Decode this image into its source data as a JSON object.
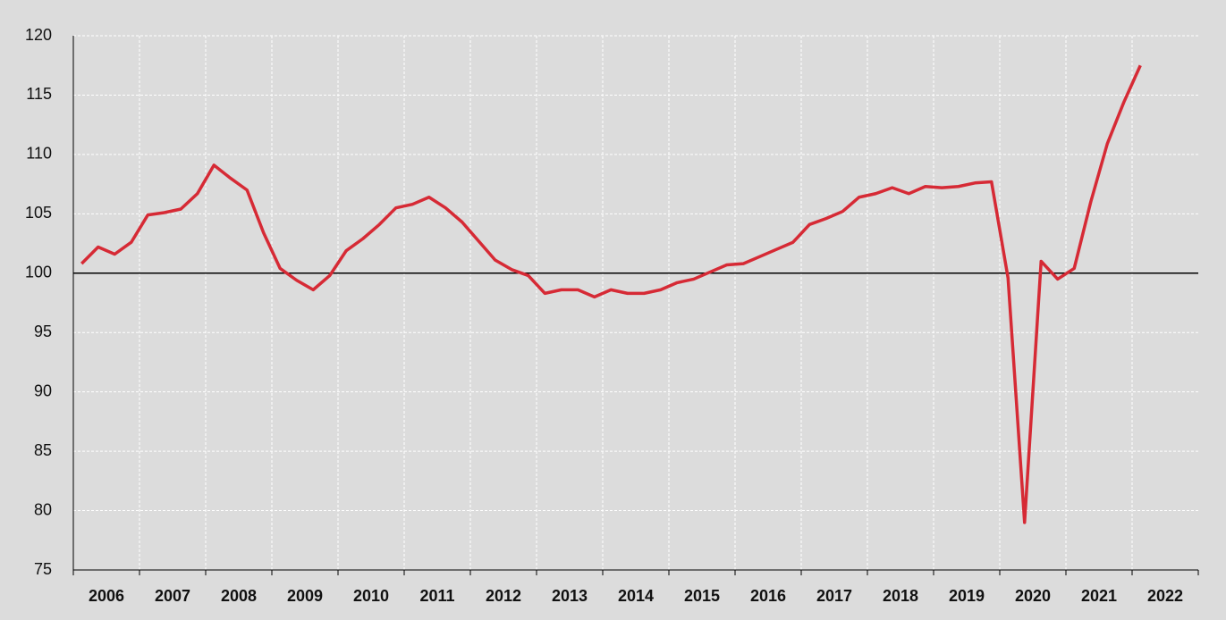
{
  "chart_data": {
    "type": "line",
    "categories": [
      "2006",
      "2007",
      "2008",
      "2009",
      "2010",
      "2011",
      "2012",
      "2013",
      "2014",
      "2015",
      "2016",
      "2017",
      "2018",
      "2019",
      "2020",
      "2021",
      "2022"
    ],
    "x": [
      2006.125,
      2006.375,
      2006.625,
      2006.875,
      2007.125,
      2007.375,
      2007.625,
      2007.875,
      2008.125,
      2008.375,
      2008.625,
      2008.875,
      2009.125,
      2009.375,
      2009.625,
      2009.875,
      2010.125,
      2010.375,
      2010.625,
      2010.875,
      2011.125,
      2011.375,
      2011.625,
      2011.875,
      2012.125,
      2012.375,
      2012.625,
      2012.875,
      2013.125,
      2013.375,
      2013.625,
      2013.875,
      2014.125,
      2014.375,
      2014.625,
      2014.875,
      2015.125,
      2015.375,
      2015.625,
      2015.875,
      2016.125,
      2016.375,
      2016.625,
      2016.875,
      2017.125,
      2017.375,
      2017.625,
      2017.875,
      2018.125,
      2018.375,
      2018.625,
      2018.875,
      2019.125,
      2019.375,
      2019.625,
      2019.875,
      2020.125,
      2020.375,
      2020.625,
      2020.875,
      2021.125,
      2021.375,
      2021.625,
      2021.875,
      2022.125
    ],
    "series": [
      {
        "color": "#d62a35",
        "values": [
          100.8,
          102.2,
          101.6,
          102.6,
          104.9,
          105.1,
          105.4,
          106.7,
          109.1,
          108.0,
          107.0,
          103.4,
          100.4,
          99.4,
          98.6,
          99.8,
          101.9,
          102.9,
          104.1,
          105.5,
          105.8,
          106.4,
          105.5,
          104.3,
          102.7,
          101.1,
          100.3,
          99.8,
          98.3,
          98.6,
          98.6,
          98.0,
          98.6,
          98.3,
          98.3,
          98.6,
          99.2,
          99.5,
          100.1,
          100.7,
          100.8,
          101.4,
          102.0,
          102.6,
          104.1,
          104.6,
          105.2,
          106.4,
          106.7,
          107.2,
          106.7,
          107.3,
          107.2,
          107.3,
          107.6,
          107.7,
          99.6,
          79.0,
          101.0,
          99.5,
          100.4,
          106.0,
          110.9,
          114.4,
          117.5
        ]
      }
    ],
    "xlim": [
      2006,
      2023
    ],
    "ylim": [
      75,
      120
    ],
    "yticks": [
      75,
      80,
      85,
      90,
      95,
      100,
      105,
      110,
      115,
      120
    ],
    "reference_line": 100,
    "grid": true
  }
}
